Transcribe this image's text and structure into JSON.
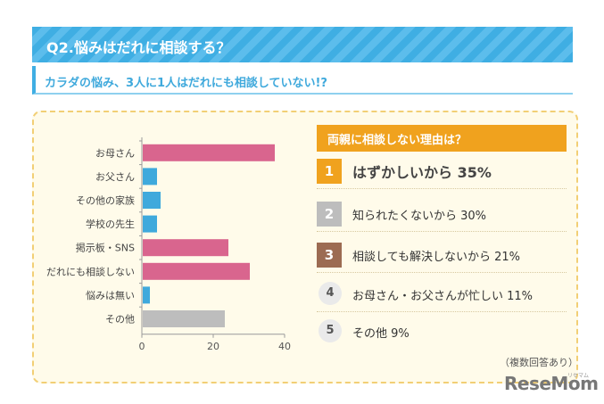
{
  "header": {
    "title": "Q2.悩みはだれに相談する？"
  },
  "subheader": {
    "text": "カラダの悩み、3人に1人はだれにも相談していない!?"
  },
  "chart_data": {
    "type": "bar",
    "orientation": "horizontal",
    "categories": [
      "お母さん",
      "お父さん",
      "その他の家族",
      "学校の先生",
      "掲示板・SNS",
      "だれにも相談しない",
      "悩みは無い",
      "その他"
    ],
    "values": [
      37,
      4,
      5,
      4,
      24,
      30,
      2,
      23
    ],
    "colors": [
      "#d9658e",
      "#3fa9dc",
      "#3fa9dc",
      "#3fa9dc",
      "#d9658e",
      "#d9658e",
      "#3fa9dc",
      "#bdbdbd"
    ],
    "xlim": [
      0,
      40
    ],
    "xticks": [
      "0",
      "20",
      "40"
    ],
    "grid": false
  },
  "reasons": {
    "title": "両親に相談しない理由は？",
    "items": [
      {
        "rank": "1",
        "text": "はずかしいから 35%",
        "badge_color": "#f0a21e"
      },
      {
        "rank": "2",
        "text": "知られたくないから 30%",
        "badge_color": "#bdbdbd"
      },
      {
        "rank": "3",
        "text": "相談しても解決しないから 21%",
        "badge_color": "#9c6b52"
      },
      {
        "rank": "4",
        "text": "お母さん・お父さんが忙しい 11%"
      },
      {
        "rank": "5",
        "text": "その他 9%"
      }
    ]
  },
  "note": "（複数回答あり）",
  "logo": {
    "text": "ReseMom",
    "sub": "リセマム"
  }
}
